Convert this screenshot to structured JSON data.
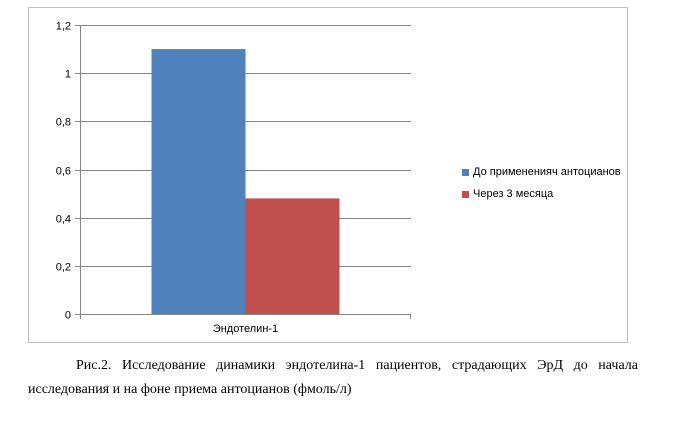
{
  "chart_data": {
    "type": "bar",
    "categories": [
      "Эндотелин-1"
    ],
    "series": [
      {
        "name": "До примененияч антоцианов",
        "values": [
          1.1
        ],
        "color": "#4f81bd"
      },
      {
        "name": "Через 3 месяца",
        "values": [
          0.48
        ],
        "color": "#c0504d"
      }
    ],
    "ylim": [
      0,
      1.2
    ],
    "yticks": [
      "0",
      "0,2",
      "0,4",
      "0,6",
      "0,8",
      "1",
      "1,2"
    ],
    "grid": true,
    "legend_position": "right",
    "title": "",
    "xlabel": "",
    "ylabel": ""
  },
  "caption": {
    "text": "Рис.2. Исследование динамики эндотелина-1 пациентов, страдающих ЭрД до начала исследования и на фоне приема антоцианов (фмоль/л)"
  }
}
